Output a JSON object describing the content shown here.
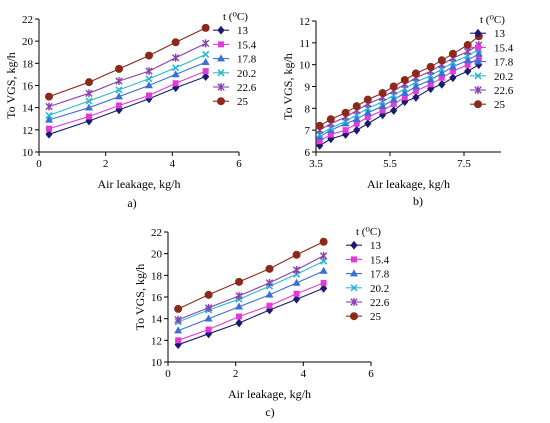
{
  "legend_title": "t (⁰C)",
  "chart_data": [
    {
      "type": "line",
      "panel_label": "a)",
      "xlabel": "Air leakage, kg/h",
      "ylabel": "To VGS, kg/h",
      "xlim": [
        0,
        6
      ],
      "ylim": [
        10,
        22
      ],
      "xticks": [
        0,
        2,
        4,
        6
      ],
      "yticks": [
        10,
        12,
        14,
        16,
        18,
        20,
        22
      ],
      "legend_position": "right",
      "series": [
        {
          "name": "13",
          "color": "#1a1a6e",
          "marker": "diamond",
          "x": [
            0.3,
            1.5,
            2.4,
            3.3,
            4.1,
            5.0
          ],
          "y": [
            11.6,
            12.8,
            13.8,
            14.8,
            15.8,
            16.8
          ]
        },
        {
          "name": "15.4",
          "color": "#e23bd6",
          "marker": "square",
          "x": [
            0.3,
            1.5,
            2.4,
            3.3,
            4.1,
            5.0
          ],
          "y": [
            12.1,
            13.2,
            14.2,
            15.1,
            16.2,
            17.3
          ]
        },
        {
          "name": "17.8",
          "color": "#3a6fd8",
          "marker": "triangle",
          "x": [
            0.3,
            1.5,
            2.4,
            3.3,
            4.1,
            5.0
          ],
          "y": [
            12.9,
            14.0,
            15.0,
            16.0,
            17.0,
            18.1
          ]
        },
        {
          "name": "20.2",
          "color": "#28b8d0",
          "marker": "x",
          "x": [
            0.3,
            1.5,
            2.4,
            3.3,
            4.1,
            5.0
          ],
          "y": [
            13.3,
            14.6,
            15.6,
            16.6,
            17.6,
            18.8
          ]
        },
        {
          "name": "22.6",
          "color": "#8a3fb0",
          "marker": "star",
          "x": [
            0.3,
            1.5,
            2.4,
            3.3,
            4.1,
            5.0
          ],
          "y": [
            14.1,
            15.3,
            16.4,
            17.3,
            18.5,
            19.8
          ]
        },
        {
          "name": "25",
          "color": "#8b2a1a",
          "marker": "circle",
          "x": [
            0.3,
            1.5,
            2.4,
            3.3,
            4.1,
            5.0
          ],
          "y": [
            15.0,
            16.3,
            17.5,
            18.7,
            19.9,
            21.2
          ]
        }
      ]
    },
    {
      "type": "line",
      "panel_label": "b)",
      "xlabel": "Air leakage, kg/h",
      "ylabel": "To VGS, kg/h",
      "xlim": [
        3.5,
        8.5
      ],
      "ylim": [
        6,
        12
      ],
      "xticks": [
        3.5,
        5.5,
        7.5
      ],
      "yticks": [
        6,
        7,
        8,
        9,
        10,
        11,
        12
      ],
      "legend_position": "right",
      "series": [
        {
          "name": "13",
          "color": "#1a1a6e",
          "marker": "diamond",
          "x": [
            3.6,
            3.9,
            4.3,
            4.6,
            4.9,
            5.3,
            5.6,
            5.9,
            6.2,
            6.6,
            6.9,
            7.2,
            7.6,
            7.9
          ],
          "y": [
            6.3,
            6.6,
            6.8,
            7.0,
            7.3,
            7.7,
            7.9,
            8.3,
            8.5,
            8.9,
            9.1,
            9.4,
            9.7,
            10.0
          ]
        },
        {
          "name": "15.4",
          "color": "#e23bd6",
          "marker": "square",
          "x": [
            3.6,
            3.9,
            4.3,
            4.6,
            4.9,
            5.3,
            5.6,
            5.9,
            6.2,
            6.6,
            6.9,
            7.2,
            7.6,
            7.9
          ],
          "y": [
            6.5,
            6.8,
            7.0,
            7.3,
            7.6,
            7.9,
            8.2,
            8.5,
            8.8,
            9.1,
            9.4,
            9.7,
            10.0,
            10.3
          ]
        },
        {
          "name": "17.8",
          "color": "#3a6fd8",
          "marker": "triangle",
          "x": [
            3.6,
            3.9,
            4.3,
            4.6,
            4.9,
            5.3,
            5.6,
            5.9,
            6.2,
            6.6,
            6.9,
            7.2,
            7.6,
            7.9
          ],
          "y": [
            6.7,
            7.0,
            7.3,
            7.5,
            7.8,
            8.1,
            8.4,
            8.7,
            9.0,
            9.3,
            9.6,
            9.9,
            10.2,
            10.5
          ]
        },
        {
          "name": "20.2",
          "color": "#28b8d0",
          "marker": "x",
          "x": [
            3.6,
            3.9,
            4.3,
            4.6,
            4.9,
            5.3,
            5.6,
            5.9,
            6.2,
            6.6,
            6.9,
            7.2,
            7.6,
            7.9
          ],
          "y": [
            6.8,
            7.1,
            7.4,
            7.7,
            8.0,
            8.3,
            8.6,
            8.9,
            9.2,
            9.5,
            9.8,
            10.1,
            10.4,
            10.7
          ]
        },
        {
          "name": "22.6",
          "color": "#8a3fb0",
          "marker": "star",
          "x": [
            3.6,
            3.9,
            4.3,
            4.6,
            4.9,
            5.3,
            5.6,
            5.9,
            6.2,
            6.6,
            6.9,
            7.2,
            7.6,
            7.9
          ],
          "y": [
            7.0,
            7.3,
            7.6,
            7.9,
            8.2,
            8.5,
            8.8,
            9.1,
            9.4,
            9.7,
            10.0,
            10.3,
            10.6,
            10.9
          ]
        },
        {
          "name": "25",
          "color": "#8b2a1a",
          "marker": "circle",
          "x": [
            3.6,
            3.9,
            4.3,
            4.6,
            4.9,
            5.3,
            5.6,
            5.9,
            6.2,
            6.6,
            6.9,
            7.2,
            7.6,
            7.9
          ],
          "y": [
            7.2,
            7.5,
            7.8,
            8.1,
            8.4,
            8.7,
            9.0,
            9.3,
            9.6,
            9.9,
            10.2,
            10.5,
            10.9,
            11.3
          ]
        }
      ]
    },
    {
      "type": "line",
      "panel_label": "c)",
      "xlabel": "Air leakage, kg/h",
      "ylabel": "To VGS, kg/h",
      "xlim": [
        0,
        6
      ],
      "ylim": [
        10,
        22
      ],
      "xticks": [
        0,
        2,
        4,
        6
      ],
      "yticks": [
        10,
        12,
        14,
        16,
        18,
        20,
        22
      ],
      "legend_position": "right",
      "series": [
        {
          "name": "13",
          "color": "#1a1a6e",
          "marker": "diamond",
          "x": [
            0.3,
            1.2,
            2.1,
            3.0,
            3.8,
            4.6
          ],
          "y": [
            11.6,
            12.6,
            13.6,
            14.8,
            15.8,
            16.8
          ]
        },
        {
          "name": "15.4",
          "color": "#e23bd6",
          "marker": "square",
          "x": [
            0.3,
            1.2,
            2.1,
            3.0,
            3.8,
            4.6
          ],
          "y": [
            12.0,
            13.0,
            14.2,
            15.2,
            16.3,
            17.3
          ]
        },
        {
          "name": "17.8",
          "color": "#3a6fd8",
          "marker": "triangle",
          "x": [
            0.3,
            1.2,
            2.1,
            3.0,
            3.8,
            4.6
          ],
          "y": [
            12.9,
            14.0,
            15.1,
            16.2,
            17.3,
            18.4
          ]
        },
        {
          "name": "20.2",
          "color": "#28b8d0",
          "marker": "x",
          "x": [
            0.3,
            1.2,
            2.1,
            3.0,
            3.8,
            4.6
          ],
          "y": [
            13.7,
            14.8,
            15.8,
            17.0,
            18.1,
            19.3
          ]
        },
        {
          "name": "22.6",
          "color": "#8a3fb0",
          "marker": "star",
          "x": [
            0.3,
            1.2,
            2.1,
            3.0,
            3.8,
            4.6
          ],
          "y": [
            13.9,
            15.0,
            16.1,
            17.3,
            18.5,
            19.8
          ]
        },
        {
          "name": "25",
          "color": "#8b2a1a",
          "marker": "circle",
          "x": [
            0.3,
            1.2,
            2.1,
            3.0,
            3.8,
            4.6
          ],
          "y": [
            14.9,
            16.2,
            17.4,
            18.6,
            19.9,
            21.1
          ]
        }
      ]
    }
  ]
}
